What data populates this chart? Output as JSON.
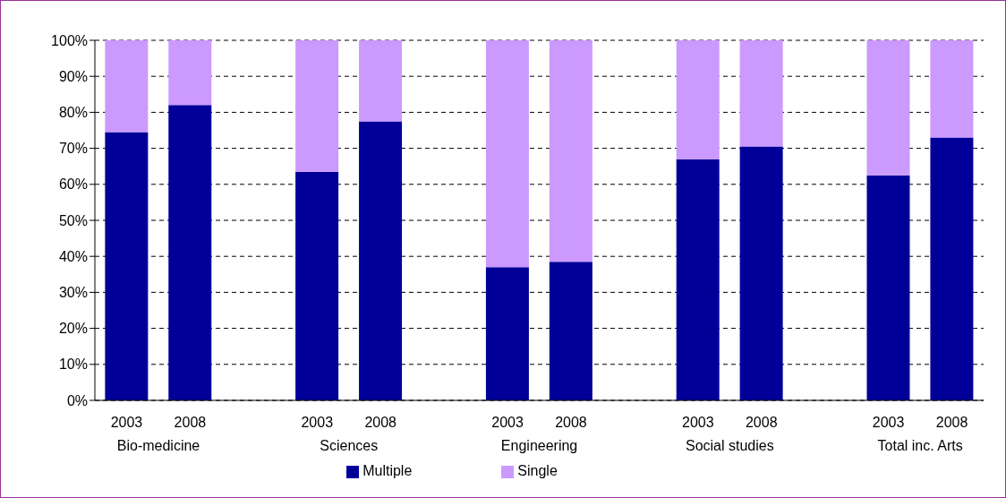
{
  "chart_data": {
    "type": "bar",
    "stacked": true,
    "categories": [
      "2003",
      "2008",
      null,
      "2003",
      "2008",
      null,
      "2003",
      "2008",
      null,
      "2003",
      "2008",
      null,
      "2003",
      "2008"
    ],
    "annotations": [
      "Bio-medicine",
      "Sciences",
      "Engineering",
      "Social studies",
      "Total inc. Arts"
    ],
    "series": [
      {
        "name": "Multiple",
        "color": "#000099",
        "values": [
          74.5,
          82,
          null,
          63.5,
          77.5,
          null,
          37,
          38.5,
          null,
          67,
          70.5,
          null,
          62.5,
          73
        ]
      },
      {
        "name": "Single",
        "color": "#cc99ff",
        "values": [
          25.5,
          18,
          null,
          36.5,
          22.5,
          null,
          63,
          61.5,
          null,
          33,
          29.5,
          null,
          37.5,
          27
        ]
      }
    ],
    "ylim": [
      0,
      100
    ],
    "yticks": [
      {
        "value": 0,
        "label": "0%"
      },
      {
        "value": 10,
        "label": "10%"
      },
      {
        "value": 20,
        "label": "20%"
      },
      {
        "value": 30,
        "label": "30%"
      },
      {
        "value": 40,
        "label": "40%"
      },
      {
        "value": 50,
        "label": "50%"
      },
      {
        "value": 60,
        "label": "60%"
      },
      {
        "value": 70,
        "label": "70%"
      },
      {
        "value": 80,
        "label": "80%"
      },
      {
        "value": 90,
        "label": "90%"
      },
      {
        "value": 100,
        "label": "100%"
      }
    ],
    "grid": "y",
    "legend": "bottom"
  }
}
